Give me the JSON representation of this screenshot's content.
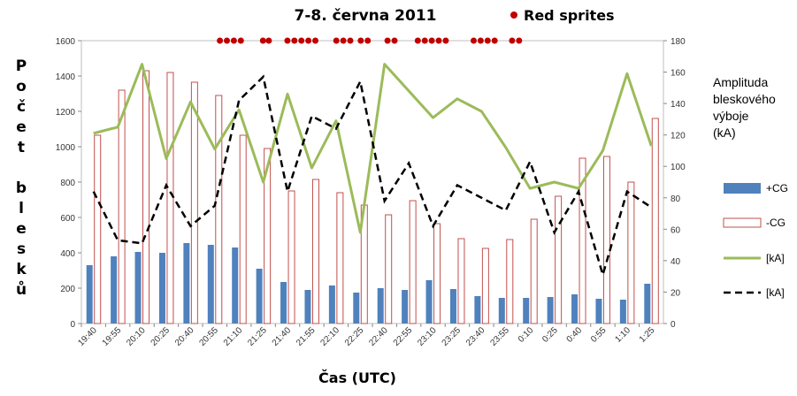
{
  "chart_data": {
    "type": "bar",
    "title": "7-8. června 2011",
    "xlabel": "Čas (UTC)",
    "ylabel": "Počet blesků",
    "y2label_lines": [
      "Amplituda",
      "bleskového",
      "výboje",
      "(kA)"
    ],
    "ylim": [
      0,
      1600
    ],
    "y2lim": [
      0,
      180
    ],
    "yticks": [
      "0",
      "200",
      "400",
      "600",
      "800",
      "1000",
      "1200",
      "1400",
      "1600"
    ],
    "y2ticks": [
      "0",
      "20",
      "40",
      "60",
      "80",
      "100",
      "120",
      "140",
      "160",
      "180"
    ],
    "categories": [
      "19:40",
      "19:55",
      "20:10",
      "20:25",
      "20:40",
      "20:55",
      "21:10",
      "21:25",
      "21:40",
      "21:55",
      "22:10",
      "22:25",
      "22:40",
      "22:55",
      "23:10",
      "23:25",
      "23:40",
      "23:55",
      "0:10",
      "0:25",
      "0:40",
      "0:55",
      "1:10",
      "1:25"
    ],
    "series": [
      {
        "name": "+CG",
        "kind": "bar",
        "color": "#4f81bd",
        "axis": "left",
        "values": [
          330,
          380,
          405,
          400,
          455,
          445,
          430,
          310,
          235,
          190,
          215,
          175,
          200,
          190,
          245,
          195,
          155,
          145,
          145,
          150,
          165,
          140,
          135,
          225
        ]
      },
      {
        "name": "-CG",
        "kind": "bar",
        "color": "#c0504d",
        "axis": "left",
        "values": [
          1065,
          1320,
          1430,
          1420,
          1365,
          1290,
          1065,
          990,
          750,
          815,
          740,
          670,
          615,
          695,
          565,
          480,
          425,
          475,
          590,
          720,
          935,
          945,
          800,
          1160
        ]
      },
      {
        "name": "[kA]",
        "kind": "line",
        "color": "#9bbb59",
        "axis": "right",
        "values": [
          121,
          125,
          165,
          105,
          141,
          111,
          136,
          90,
          146,
          99,
          129,
          58,
          165,
          148,
          131,
          143,
          135,
          112,
          86,
          90,
          86,
          110,
          159,
          113
        ]
      },
      {
        "name": "[kA]",
        "kind": "dashed-line",
        "color": "#000000",
        "axis": "right",
        "values": [
          84,
          53,
          51,
          88,
          62,
          75,
          142,
          157,
          84,
          132,
          124,
          154,
          78,
          102,
          62,
          88,
          80,
          72,
          103,
          58,
          84,
          31,
          84,
          74
        ]
      }
    ],
    "red_sprites": {
      "label": "Red sprites",
      "color": "#c00000",
      "times_fraction": [
        0.238,
        0.25,
        0.262,
        0.274,
        0.312,
        0.322,
        0.354,
        0.366,
        0.378,
        0.39,
        0.402,
        0.438,
        0.45,
        0.462,
        0.48,
        0.492,
        0.526,
        0.538,
        0.578,
        0.59,
        0.602,
        0.614,
        0.626,
        0.674,
        0.686,
        0.698,
        0.71,
        0.74,
        0.752
      ]
    },
    "legend_position": "right",
    "grid": false
  }
}
